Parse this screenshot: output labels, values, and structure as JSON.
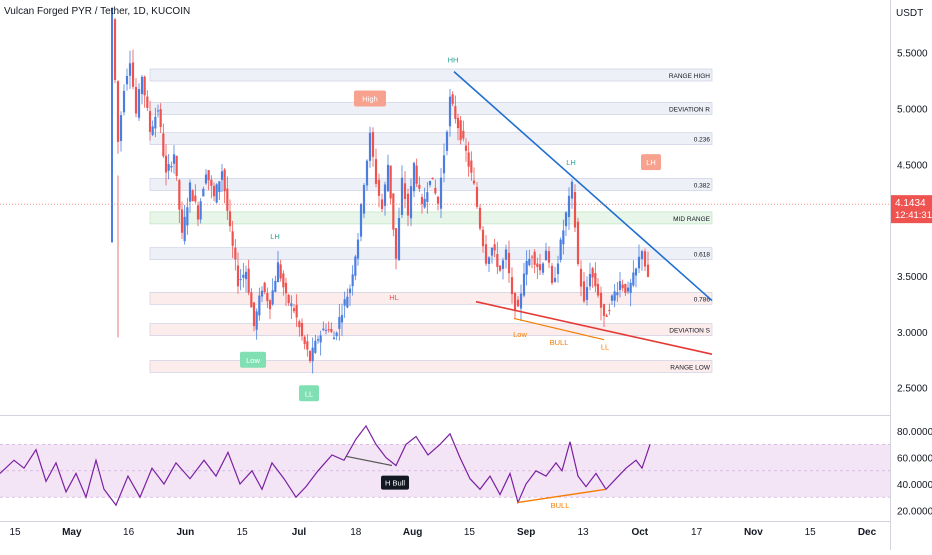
{
  "header": {
    "symbol_title": "Vulcan Forged PYR / Tether, 1D, KUCOIN"
  },
  "chart_data": {
    "type": "candlestick",
    "currency_label": "USDT",
    "x_axis": {
      "tick_labels": [
        "15",
        "May",
        "16",
        "Jun",
        "15",
        "Jul",
        "18",
        "Aug",
        "15",
        "Sep",
        "13",
        "Oct",
        "17",
        "Nov",
        "15",
        "Dec"
      ]
    },
    "price_axis": {
      "range": [
        2.3,
        5.9
      ],
      "ticks": [
        {
          "value": 5.5,
          "label": "5.5000"
        },
        {
          "value": 5.0,
          "label": "5.0000"
        },
        {
          "value": 4.5,
          "label": "4.5000"
        },
        {
          "value": 3.5,
          "label": "3.5000"
        },
        {
          "value": 3.0,
          "label": "3.0000"
        },
        {
          "value": 2.5,
          "label": "2.5000"
        }
      ],
      "current_price": {
        "value": 4.1434,
        "label": "4.1434",
        "countdown": "12:41:31",
        "color": "#ef5350"
      }
    },
    "rsi_axis": {
      "range": [
        15,
        90
      ],
      "ticks": [
        {
          "value": 80,
          "label": "80.0000"
        },
        {
          "value": 60,
          "label": "60.0000"
        },
        {
          "value": 40,
          "label": "40.0000"
        },
        {
          "value": 20,
          "label": "20.0000"
        }
      ],
      "band": [
        30,
        70
      ],
      "mid": 50,
      "line_color": "#7b1fa2",
      "band_color": "#f3e5f5"
    },
    "levels": [
      {
        "label": "RANGE HIGH",
        "value": 5.3
      },
      {
        "label": "DEVIATION R",
        "value": 5.0
      },
      {
        "label": "0.236",
        "value": 4.73
      },
      {
        "label": "0.382",
        "value": 4.32
      },
      {
        "label": "MID RANGE",
        "value": 4.02
      },
      {
        "label": "0.618",
        "value": 3.7
      },
      {
        "label": "0.786",
        "value": 3.3
      },
      {
        "label": "DEVIATION S",
        "value": 3.02
      },
      {
        "label": "RANGE LOW",
        "value": 2.69
      }
    ],
    "markers": [
      {
        "label": "High",
        "type": "badge",
        "color": "#f7a28f",
        "value": 5.09
      },
      {
        "label": "HH",
        "type": "text",
        "color": "#26a69a",
        "value": 5.44
      },
      {
        "label": "LH",
        "type": "text",
        "color": "#26a69a",
        "value": 4.52
      },
      {
        "label": "LH",
        "type": "badge",
        "color": "#f7a28f",
        "value": 4.52
      },
      {
        "label": "LH",
        "type": "text",
        "color": "#26a69a",
        "value": 3.86
      },
      {
        "label": "HL",
        "type": "text",
        "color": "#ef5350",
        "value": 3.31
      },
      {
        "label": "Low",
        "type": "badge",
        "color": "#80e0b4",
        "value": 2.75
      },
      {
        "label": "LL",
        "type": "badge",
        "color": "#80e0b4",
        "value": 2.45
      },
      {
        "label": "Low",
        "type": "text",
        "color": "#f57c00",
        "value": 2.98
      },
      {
        "label": "BULL",
        "type": "text",
        "color": "#f57c00",
        "value": 2.91
      },
      {
        "label": "LL",
        "type": "text",
        "color": "#f57c00",
        "value": 2.87
      }
    ],
    "rsi_markers": [
      {
        "label": "H Bull",
        "type": "badge",
        "color": "#131722",
        "value": 41
      },
      {
        "label": "BULL",
        "type": "text",
        "color": "#f57c00",
        "value": 24
      }
    ],
    "colors": {
      "up": "#26a69a",
      "up_shade": "#4a7fe0",
      "down": "#ef5350",
      "trendline": "#1f6fd1",
      "support": "#e53935",
      "rsi_div_neg": "#555555",
      "rsi_div_pos": "#f57c00"
    }
  }
}
